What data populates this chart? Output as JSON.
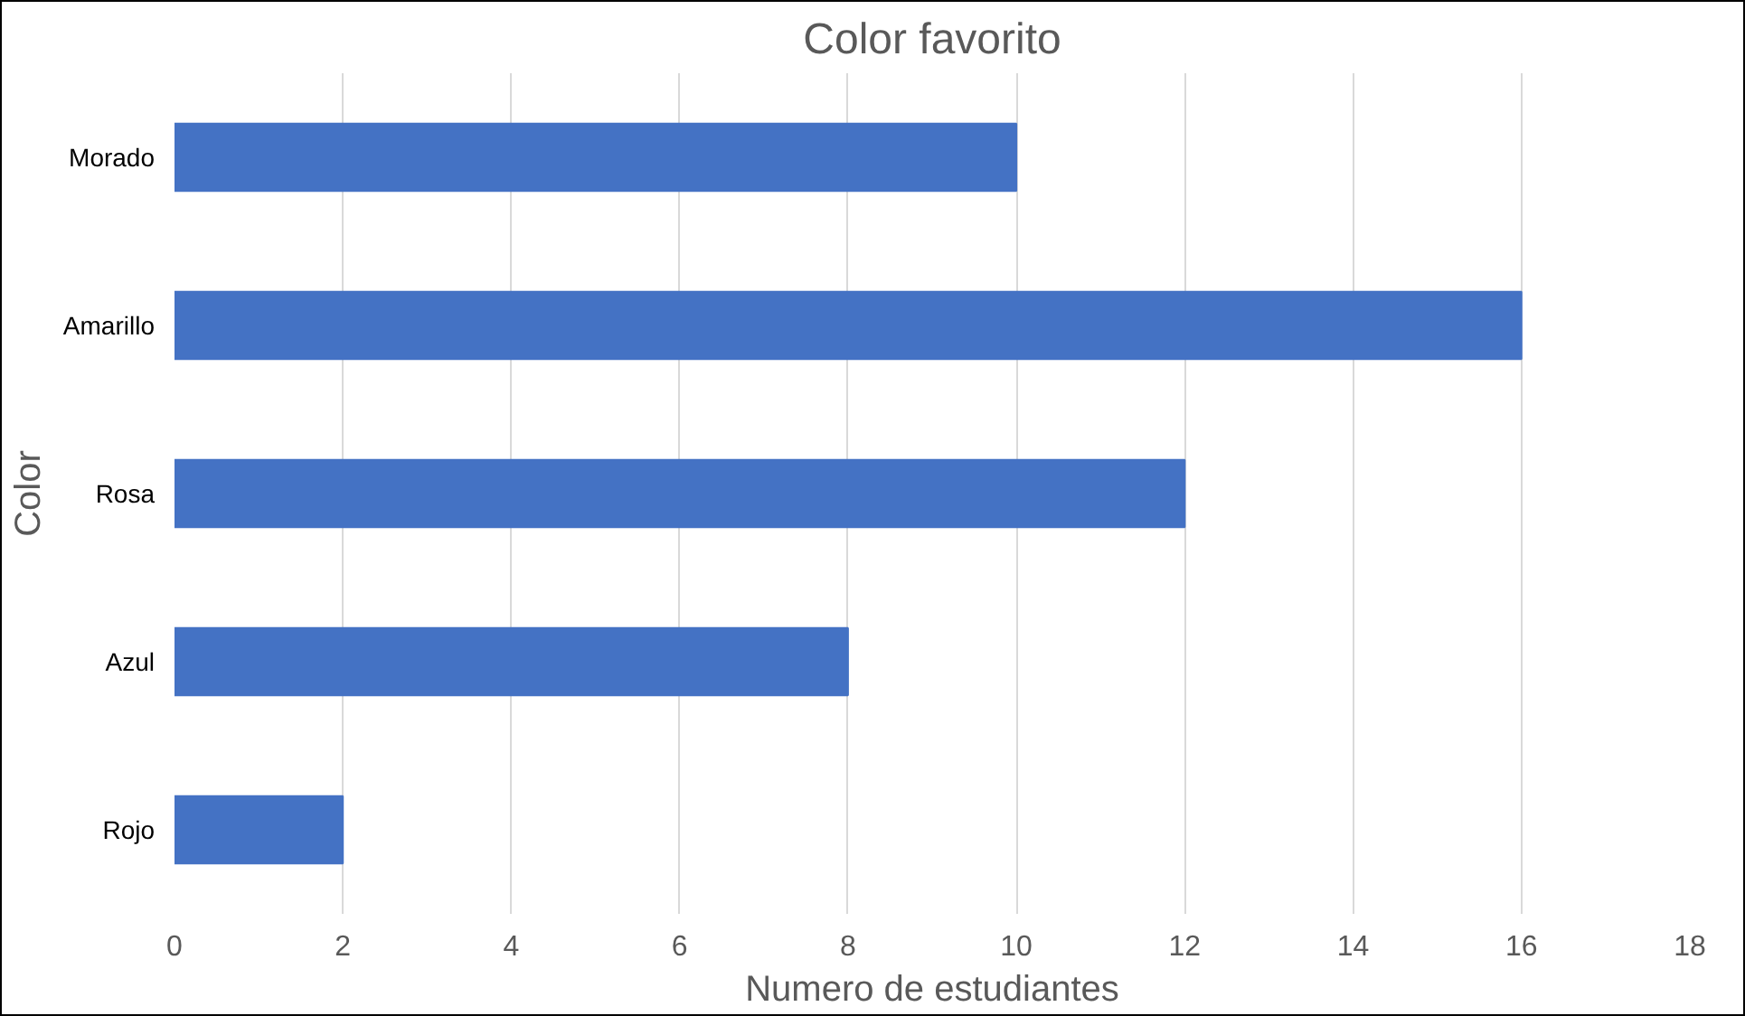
{
  "chart_data": {
    "type": "bar",
    "orientation": "horizontal",
    "title": "Color favorito",
    "xlabel": "Numero de estudiantes",
    "ylabel": "Color",
    "categories": [
      "Morado",
      "Amarillo",
      "Rosa",
      "Azul",
      "Rojo"
    ],
    "series": [
      {
        "color": "#4472c4",
        "values": [
          10,
          16,
          12,
          8,
          2
        ]
      }
    ],
    "xlim": [
      0,
      18
    ],
    "xticks": [
      0,
      2,
      4,
      6,
      8,
      10,
      12,
      14,
      16,
      18
    ],
    "grid": "x"
  }
}
